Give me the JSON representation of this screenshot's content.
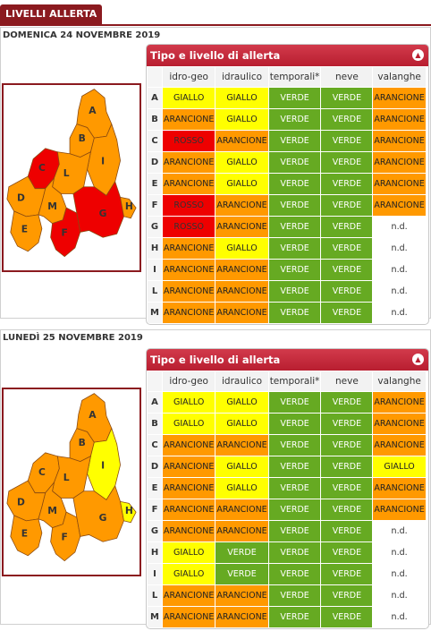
{
  "header": {
    "title": "LIVELLI ALLERTA"
  },
  "columns": [
    "idro-geo",
    "idraulico",
    "temporali*",
    "neve",
    "valanghe"
  ],
  "panel_title": "Tipo e livello di allerta",
  "colors": {
    "giallo": "#ffff00",
    "arancione": "#ff9900",
    "verde": "#66aa22",
    "rosso": "#ee0000",
    "accent": "#8b1a1f"
  },
  "days": [
    {
      "date": "DOMENICA 24 NOVEMBRE 2019",
      "rows": [
        {
          "zone": "A",
          "values": [
            "GIALLO",
            "GIALLO",
            "VERDE",
            "VERDE",
            "ARANCIONE"
          ]
        },
        {
          "zone": "B",
          "values": [
            "ARANCIONE",
            "GIALLO",
            "VERDE",
            "VERDE",
            "ARANCIONE"
          ]
        },
        {
          "zone": "C",
          "values": [
            "ROSSO",
            "ARANCIONE",
            "VERDE",
            "VERDE",
            "ARANCIONE"
          ]
        },
        {
          "zone": "D",
          "values": [
            "ARANCIONE",
            "GIALLO",
            "VERDE",
            "VERDE",
            "ARANCIONE"
          ]
        },
        {
          "zone": "E",
          "values": [
            "ARANCIONE",
            "GIALLO",
            "VERDE",
            "VERDE",
            "ARANCIONE"
          ]
        },
        {
          "zone": "F",
          "values": [
            "ROSSO",
            "ARANCIONE",
            "VERDE",
            "VERDE",
            "ARANCIONE"
          ]
        },
        {
          "zone": "G",
          "values": [
            "ROSSO",
            "ARANCIONE",
            "VERDE",
            "VERDE",
            "n.d."
          ]
        },
        {
          "zone": "H",
          "values": [
            "ARANCIONE",
            "GIALLO",
            "VERDE",
            "VERDE",
            "n.d."
          ]
        },
        {
          "zone": "I",
          "values": [
            "ARANCIONE",
            "ARANCIONE",
            "VERDE",
            "VERDE",
            "n.d."
          ]
        },
        {
          "zone": "L",
          "values": [
            "ARANCIONE",
            "ARANCIONE",
            "VERDE",
            "VERDE",
            "n.d."
          ]
        },
        {
          "zone": "M",
          "values": [
            "ARANCIONE",
            "ARANCIONE",
            "VERDE",
            "VERDE",
            "n.d."
          ]
        }
      ],
      "map_zones": {
        "A": "ARANCIONE",
        "B": "ARANCIONE",
        "C": "ROSSO",
        "D": "ARANCIONE",
        "E": "ARANCIONE",
        "F": "ROSSO",
        "G": "ROSSO",
        "H": "ARANCIONE",
        "I": "ARANCIONE",
        "L": "ARANCIONE",
        "M": "ARANCIONE"
      }
    },
    {
      "date": "LUNEDÌ 25 NOVEMBRE 2019",
      "rows": [
        {
          "zone": "A",
          "values": [
            "GIALLO",
            "GIALLO",
            "VERDE",
            "VERDE",
            "ARANCIONE"
          ]
        },
        {
          "zone": "B",
          "values": [
            "GIALLO",
            "GIALLO",
            "VERDE",
            "VERDE",
            "ARANCIONE"
          ]
        },
        {
          "zone": "C",
          "values": [
            "ARANCIONE",
            "ARANCIONE",
            "VERDE",
            "VERDE",
            "ARANCIONE"
          ]
        },
        {
          "zone": "D",
          "values": [
            "ARANCIONE",
            "GIALLO",
            "VERDE",
            "VERDE",
            "GIALLO"
          ]
        },
        {
          "zone": "E",
          "values": [
            "ARANCIONE",
            "GIALLO",
            "VERDE",
            "VERDE",
            "ARANCIONE"
          ]
        },
        {
          "zone": "F",
          "values": [
            "ARANCIONE",
            "ARANCIONE",
            "VERDE",
            "VERDE",
            "ARANCIONE"
          ]
        },
        {
          "zone": "G",
          "values": [
            "ARANCIONE",
            "ARANCIONE",
            "VERDE",
            "VERDE",
            "n.d."
          ]
        },
        {
          "zone": "H",
          "values": [
            "GIALLO",
            "VERDE",
            "VERDE",
            "VERDE",
            "n.d."
          ]
        },
        {
          "zone": "I",
          "values": [
            "GIALLO",
            "VERDE",
            "VERDE",
            "VERDE",
            "n.d."
          ]
        },
        {
          "zone": "L",
          "values": [
            "ARANCIONE",
            "ARANCIONE",
            "VERDE",
            "VERDE",
            "n.d."
          ]
        },
        {
          "zone": "M",
          "values": [
            "ARANCIONE",
            "ARANCIONE",
            "VERDE",
            "VERDE",
            "n.d."
          ]
        }
      ],
      "map_zones": {
        "A": "ARANCIONE",
        "B": "ARANCIONE",
        "C": "ARANCIONE",
        "D": "ARANCIONE",
        "E": "ARANCIONE",
        "F": "ARANCIONE",
        "G": "ARANCIONE",
        "H": "GIALLO",
        "I": "GIALLO",
        "L": "ARANCIONE",
        "M": "ARANCIONE"
      }
    }
  ]
}
